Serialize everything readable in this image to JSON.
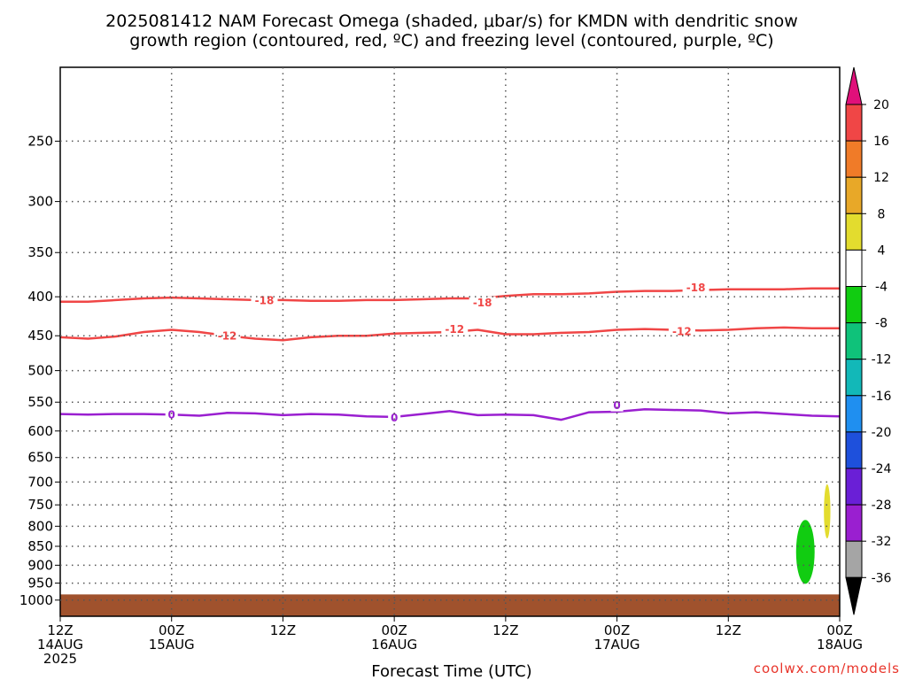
{
  "chart_data": {
    "type": "line",
    "title_line1": "2025081412 NAM Forecast Omega (shaded, μbar/s) for KMDN with dendritic snow",
    "title_line2": "growth region (contoured, red, ºC) and freezing level (contoured, purple, ºC)",
    "xlabel": "Forecast Time (UTC)",
    "ylabel": "",
    "credit": "coolwx.com/models",
    "y_axis": {
      "scale": "log",
      "inverted": true,
      "ylim": [
        1050,
        200
      ],
      "ticks": [
        250,
        300,
        350,
        400,
        450,
        500,
        550,
        600,
        650,
        700,
        750,
        800,
        850,
        900,
        950,
        1000
      ]
    },
    "x_axis": {
      "xlim": [
        0,
        84
      ],
      "ticks": [
        {
          "x": 0,
          "line1": "12Z",
          "line2": "14AUG",
          "line3": "2025"
        },
        {
          "x": 12,
          "line1": "00Z",
          "line2": "15AUG",
          "line3": ""
        },
        {
          "x": 24,
          "line1": "12Z",
          "line2": "",
          "line3": ""
        },
        {
          "x": 36,
          "line1": "00Z",
          "line2": "16AUG",
          "line3": ""
        },
        {
          "x": 48,
          "line1": "12Z",
          "line2": "",
          "line3": ""
        },
        {
          "x": 60,
          "line1": "00Z",
          "line2": "17AUG",
          "line3": ""
        },
        {
          "x": 72,
          "line1": "12Z",
          "line2": "",
          "line3": ""
        },
        {
          "x": 84,
          "line1": "00Z",
          "line2": "18AUG",
          "line3": ""
        }
      ]
    },
    "grid": true,
    "legend": "right-colorbar",
    "series": [
      {
        "name": "-18",
        "color": "#f04646",
        "x": [
          0,
          3,
          6,
          9,
          12,
          15,
          18,
          21,
          24,
          27,
          30,
          33,
          36,
          39,
          42,
          45,
          48,
          51,
          54,
          57,
          60,
          63,
          66,
          69,
          72,
          75,
          78,
          81,
          84
        ],
        "y": [
          406,
          406,
          404,
          402,
          401,
          402,
          403,
          404,
          404,
          405,
          405,
          404,
          404,
          403,
          402,
          402,
          399,
          397,
          397,
          396,
          394,
          393,
          393,
          392,
          391,
          391,
          391,
          390,
          390
        ],
        "labels": [
          {
            "x": 22,
            "y": 404,
            "text": "-18"
          },
          {
            "x": 45.5,
            "y": 407,
            "text": "-18"
          },
          {
            "x": 68.5,
            "y": 389,
            "text": "-18"
          }
        ]
      },
      {
        "name": "-12",
        "color": "#f04646",
        "x": [
          0,
          3,
          6,
          9,
          12,
          15,
          18,
          21,
          24,
          27,
          30,
          33,
          36,
          39,
          42,
          45,
          48,
          51,
          54,
          57,
          60,
          63,
          66,
          69,
          72,
          75,
          78,
          81,
          84
        ],
        "y": [
          452,
          454,
          451,
          445,
          442,
          445,
          450,
          454,
          456,
          452,
          450,
          450,
          447,
          446,
          445,
          442,
          448,
          448,
          446,
          445,
          442,
          441,
          442,
          443,
          442,
          440,
          439,
          440,
          440
        ],
        "labels": [
          {
            "x": 18,
            "y": 450,
            "text": "-12"
          },
          {
            "x": 42.5,
            "y": 441,
            "text": "-12"
          },
          {
            "x": 67,
            "y": 444,
            "text": "-12"
          }
        ]
      },
      {
        "name": "0",
        "color": "#9a1fd0",
        "x": [
          0,
          3,
          6,
          9,
          12,
          15,
          18,
          21,
          24,
          27,
          30,
          33,
          36,
          39,
          42,
          45,
          48,
          51,
          54,
          57,
          60,
          63,
          66,
          69,
          72,
          75,
          78,
          81,
          84
        ],
        "y": [
          570,
          571,
          570,
          570,
          571,
          573,
          568,
          569,
          572,
          570,
          571,
          574,
          575,
          570,
          565,
          572,
          571,
          572,
          580,
          567,
          566,
          562,
          563,
          564,
          569,
          567,
          570,
          573,
          574
        ],
        "labels": [
          {
            "x": 12,
            "y": 571,
            "text": "0"
          },
          {
            "x": 36,
            "y": 576,
            "text": "0"
          },
          {
            "x": 60,
            "y": 555,
            "text": "0"
          }
        ]
      }
    ],
    "shaded_regions": [
      {
        "name": "omega-negative",
        "color": "#11cc11",
        "value_range": [
          -8,
          -4
        ],
        "x_range": [
          79.3,
          81.3
        ],
        "p_range": [
          785,
          952
        ]
      },
      {
        "name": "omega-positive",
        "color": "#e3dc2e",
        "value_range": [
          4,
          8
        ],
        "x_range": [
          82.3,
          83.0
        ],
        "p_range": [
          705,
          830
        ]
      }
    ],
    "terrain": {
      "color": "#a0522d",
      "top_hpa": 983
    },
    "colorbar": {
      "ticks": [
        "20",
        "16",
        "12",
        "8",
        "4",
        "-4",
        "-8",
        "-12",
        "-16",
        "-20",
        "-24",
        "-28",
        "-32",
        "-36"
      ],
      "colors": [
        "#f04646",
        "#f07b28",
        "#e8a828",
        "#e3dc2e",
        "#ffffff",
        "#11cc11",
        "#0fc27a",
        "#12b8b8",
        "#1f8ff0",
        "#1e50dc",
        "#6a1fd6",
        "#9a1fd0",
        "#a5a5a5"
      ],
      "top_cap": "#e0107a",
      "bottom_cap": "#000000"
    }
  }
}
